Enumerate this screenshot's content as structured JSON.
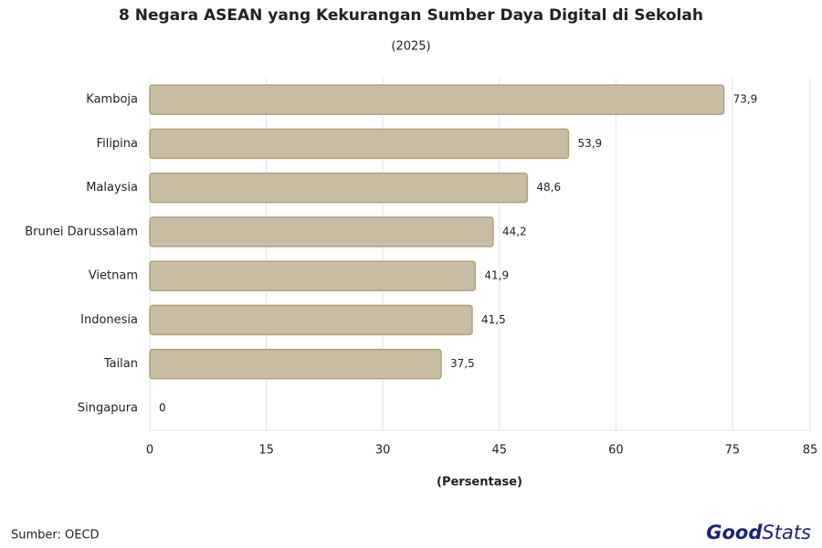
{
  "chart_data": {
    "type": "bar",
    "orientation": "horizontal",
    "title": "8 Negara ASEAN yang Kekurangan Sumber Daya Digital di Sekolah",
    "subtitle": "(2025)",
    "xlabel": "(Persentase)",
    "categories": [
      "Kamboja",
      "Filipina",
      "Malaysia",
      "Brunei Darussalam",
      "Vietnam",
      "Indonesia",
      "Tailan",
      "Singapura"
    ],
    "values": [
      73.9,
      53.9,
      48.6,
      44.2,
      41.9,
      41.5,
      37.5,
      0
    ],
    "value_labels": [
      "73,9",
      "53,9",
      "48,6",
      "44,2",
      "41,9",
      "41,5",
      "37,5",
      "0"
    ],
    "color": "#c8bca3",
    "xlim": [
      0,
      85
    ],
    "xticks": [
      0,
      15,
      30,
      45,
      60,
      75,
      85
    ],
    "grid": true,
    "source": "Sumber: OECD",
    "logo": [
      "Good",
      "Stats"
    ]
  }
}
